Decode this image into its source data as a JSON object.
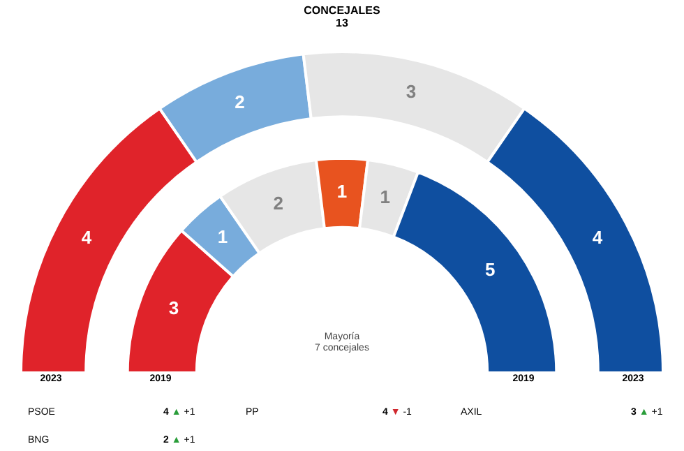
{
  "chart_data": {
    "type": "donut",
    "title": "CONCEJALES",
    "subtitle": "13",
    "categories": [
      null,
      null,
      null,
      null,
      null,
      null
    ],
    "series": [
      {
        "name": "2019",
        "values": [
          3,
          1,
          2,
          1,
          1,
          5
        ],
        "colors": [
          "#e0232a",
          "#78acdc",
          "#e6e6e6",
          "#e8531f",
          "#e6e6e6",
          "#0f4fa0"
        ]
      },
      {
        "name": "2023",
        "values": [
          4,
          2,
          3,
          null,
          null,
          4
        ],
        "colors": [
          "#e0232a",
          "#78acdc",
          "#e6e6e6",
          "#e6e6e6",
          "#e6e6e6",
          "#0f4fa0"
        ]
      }
    ],
    "data_labels": true,
    "annotations": [
      "Mayoría\n7 concejales",
      "PSOE",
      "4 ▲ +1",
      "PP",
      "4 ▼ -1",
      "AXIL",
      "3 ▲ +1",
      "BNG",
      "2 ▲ +1"
    ]
  }
}
